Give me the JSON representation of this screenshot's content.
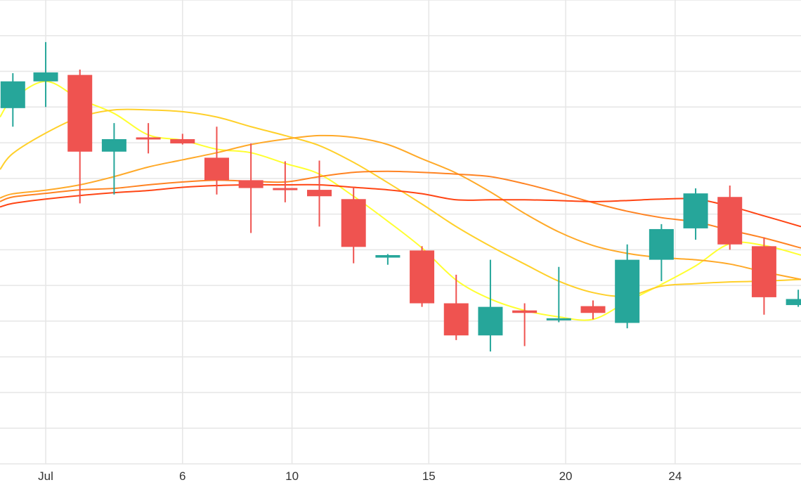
{
  "chart_data": {
    "type": "candlestick",
    "x_ticks": [
      {
        "x": 0,
        "label": "Jul"
      },
      {
        "x": 5,
        "label": "6"
      },
      {
        "x": 9,
        "label": "10"
      },
      {
        "x": 14,
        "label": "15"
      },
      {
        "x": 19,
        "label": "20"
      },
      {
        "x": 23,
        "label": "24"
      }
    ],
    "xlim": [
      -1.67,
      27.6
    ],
    "ylim": [
      0,
      13
    ],
    "grid": true,
    "candles": [
      {
        "x": -1.2,
        "open": 9.97,
        "close": 10.72,
        "high": 10.95,
        "low": 9.45
      },
      {
        "x": 0,
        "open": 10.72,
        "close": 10.97,
        "high": 11.82,
        "low": 10.0
      },
      {
        "x": 1.25,
        "open": 10.9,
        "close": 8.75,
        "high": 11.05,
        "low": 7.3
      },
      {
        "x": 2.5,
        "open": 8.75,
        "close": 9.1,
        "high": 9.55,
        "low": 7.55
      },
      {
        "x": 3.75,
        "open": 9.15,
        "close": 9.1,
        "high": 9.55,
        "low": 8.7
      },
      {
        "x": 5,
        "open": 9.1,
        "close": 8.98,
        "high": 9.25,
        "low": 8.95
      },
      {
        "x": 6.25,
        "open": 8.58,
        "close": 7.95,
        "high": 9.45,
        "low": 7.55
      },
      {
        "x": 7.5,
        "open": 7.95,
        "close": 7.73,
        "high": 8.98,
        "low": 6.47
      },
      {
        "x": 8.75,
        "open": 7.73,
        "close": 7.68,
        "high": 8.48,
        "low": 7.33
      },
      {
        "x": 10,
        "open": 7.68,
        "close": 7.5,
        "high": 8.5,
        "low": 6.65
      },
      {
        "x": 11.25,
        "open": 7.42,
        "close": 6.08,
        "high": 7.75,
        "low": 5.62
      },
      {
        "x": 12.5,
        "open": 5.78,
        "close": 5.85,
        "high": 5.88,
        "low": 5.58
      },
      {
        "x": 13.75,
        "open": 5.98,
        "close": 4.5,
        "high": 6.1,
        "low": 4.4
      },
      {
        "x": 15,
        "open": 4.5,
        "close": 3.6,
        "high": 5.3,
        "low": 3.47
      },
      {
        "x": 16.25,
        "open": 3.6,
        "close": 4.4,
        "high": 5.72,
        "low": 3.15
      },
      {
        "x": 17.5,
        "open": 4.3,
        "close": 4.23,
        "high": 4.5,
        "low": 3.3
      },
      {
        "x": 18.75,
        "open": 4.05,
        "close": 4.08,
        "high": 5.52,
        "low": 3.97
      },
      {
        "x": 20,
        "open": 4.42,
        "close": 4.23,
        "high": 4.58,
        "low": 4.05
      },
      {
        "x": 21.25,
        "open": 3.95,
        "close": 5.72,
        "high": 6.15,
        "low": 3.8
      },
      {
        "x": 22.5,
        "open": 5.72,
        "close": 6.58,
        "high": 6.72,
        "low": 5.12
      },
      {
        "x": 23.75,
        "open": 6.6,
        "close": 7.58,
        "high": 7.72,
        "low": 6.28
      },
      {
        "x": 25,
        "open": 7.48,
        "close": 6.15,
        "high": 7.8,
        "low": 6.0
      },
      {
        "x": 26.25,
        "open": 6.1,
        "close": 4.67,
        "high": 6.35,
        "low": 4.18
      },
      {
        "x": 27.5,
        "open": 4.45,
        "close": 4.62,
        "high": 4.88,
        "low": 4.4
      }
    ],
    "moving_averages": [
      {
        "color": "#ffff30",
        "x": [
          -1.67,
          -1.2,
          0,
          1.25,
          2.5,
          3.75,
          5,
          6.25,
          7.5,
          8.75,
          10,
          11.25,
          12.5,
          13.75,
          15,
          16.25,
          17.5,
          18.75,
          20,
          21.25,
          22.5,
          23.75,
          25,
          26.25,
          27.6
        ],
        "y": [
          9.72,
          10.22,
          10.72,
          10.22,
          9.82,
          9.22,
          9.07,
          8.82,
          8.72,
          8.42,
          8.12,
          7.5,
          6.8,
          6.05,
          5.15,
          4.62,
          4.3,
          4.12,
          4.05,
          4.55,
          5.03,
          5.55,
          6.17,
          6.12,
          5.85
        ]
      },
      {
        "color": "#ffd02a",
        "x": [
          -1.67,
          -1.2,
          0,
          1.25,
          2.5,
          3.75,
          5,
          6.25,
          7.5,
          8.75,
          10,
          11.25,
          12.5,
          13.75,
          15,
          16.25,
          17.5,
          18.75,
          20,
          21.25,
          22.5,
          23.75,
          25,
          26.25,
          27.6
        ],
        "y": [
          8.25,
          8.7,
          9.27,
          9.72,
          9.92,
          9.92,
          9.87,
          9.72,
          9.45,
          9.2,
          8.92,
          8.45,
          7.88,
          7.28,
          6.65,
          6.1,
          5.6,
          5.12,
          4.8,
          4.7,
          4.98,
          5.05,
          5.1,
          5.12,
          5.17
        ]
      },
      {
        "color": "#ffa928",
        "x": [
          -1.67,
          -1.2,
          0,
          1.25,
          2.5,
          3.75,
          5,
          6.25,
          7.5,
          8.75,
          10,
          11.25,
          12.5,
          13.75,
          15,
          16.25,
          17.5,
          18.75,
          20,
          21.25,
          22.5,
          23.75,
          25,
          26.25,
          27.6
        ],
        "y": [
          7.45,
          7.57,
          7.67,
          7.82,
          8.05,
          8.32,
          8.52,
          8.72,
          8.95,
          9.1,
          9.2,
          9.15,
          8.95,
          8.55,
          8.15,
          7.62,
          7.02,
          6.5,
          6.12,
          5.9,
          5.78,
          5.72,
          5.6,
          5.38,
          5.17
        ]
      },
      {
        "color": "#ff8322",
        "x": [
          -1.67,
          -1.2,
          0,
          1.25,
          2.5,
          3.75,
          5,
          6.25,
          7.5,
          8.75,
          10,
          11.25,
          12.5,
          13.75,
          15,
          16.25,
          17.5,
          18.75,
          20,
          21.25,
          22.5,
          23.75,
          25,
          26.25,
          27.6
        ],
        "y": [
          7.35,
          7.48,
          7.58,
          7.68,
          7.72,
          7.82,
          7.9,
          7.95,
          7.92,
          7.9,
          8.05,
          8.17,
          8.2,
          8.17,
          8.12,
          8.05,
          7.85,
          7.6,
          7.32,
          7.08,
          6.9,
          6.78,
          6.55,
          6.33,
          6.05
        ]
      },
      {
        "color": "#ff4514",
        "x": [
          -1.67,
          -1.2,
          0,
          1.25,
          2.5,
          3.75,
          5,
          6.25,
          7.5,
          8.75,
          10,
          11.25,
          12.5,
          13.75,
          15,
          16.25,
          17.5,
          18.75,
          20,
          21.25,
          22.5,
          23.75,
          25,
          26.25,
          27.6
        ],
        "y": [
          7.2,
          7.3,
          7.42,
          7.52,
          7.6,
          7.66,
          7.75,
          7.8,
          7.82,
          7.82,
          7.82,
          7.75,
          7.68,
          7.57,
          7.4,
          7.4,
          7.4,
          7.38,
          7.35,
          7.38,
          7.42,
          7.42,
          7.22,
          6.95,
          6.65
        ]
      }
    ],
    "colors": {
      "increasing": "#26a69a",
      "decreasing": "#ef5350",
      "grid": "#e6e6e6",
      "background": "#ffffff"
    }
  }
}
